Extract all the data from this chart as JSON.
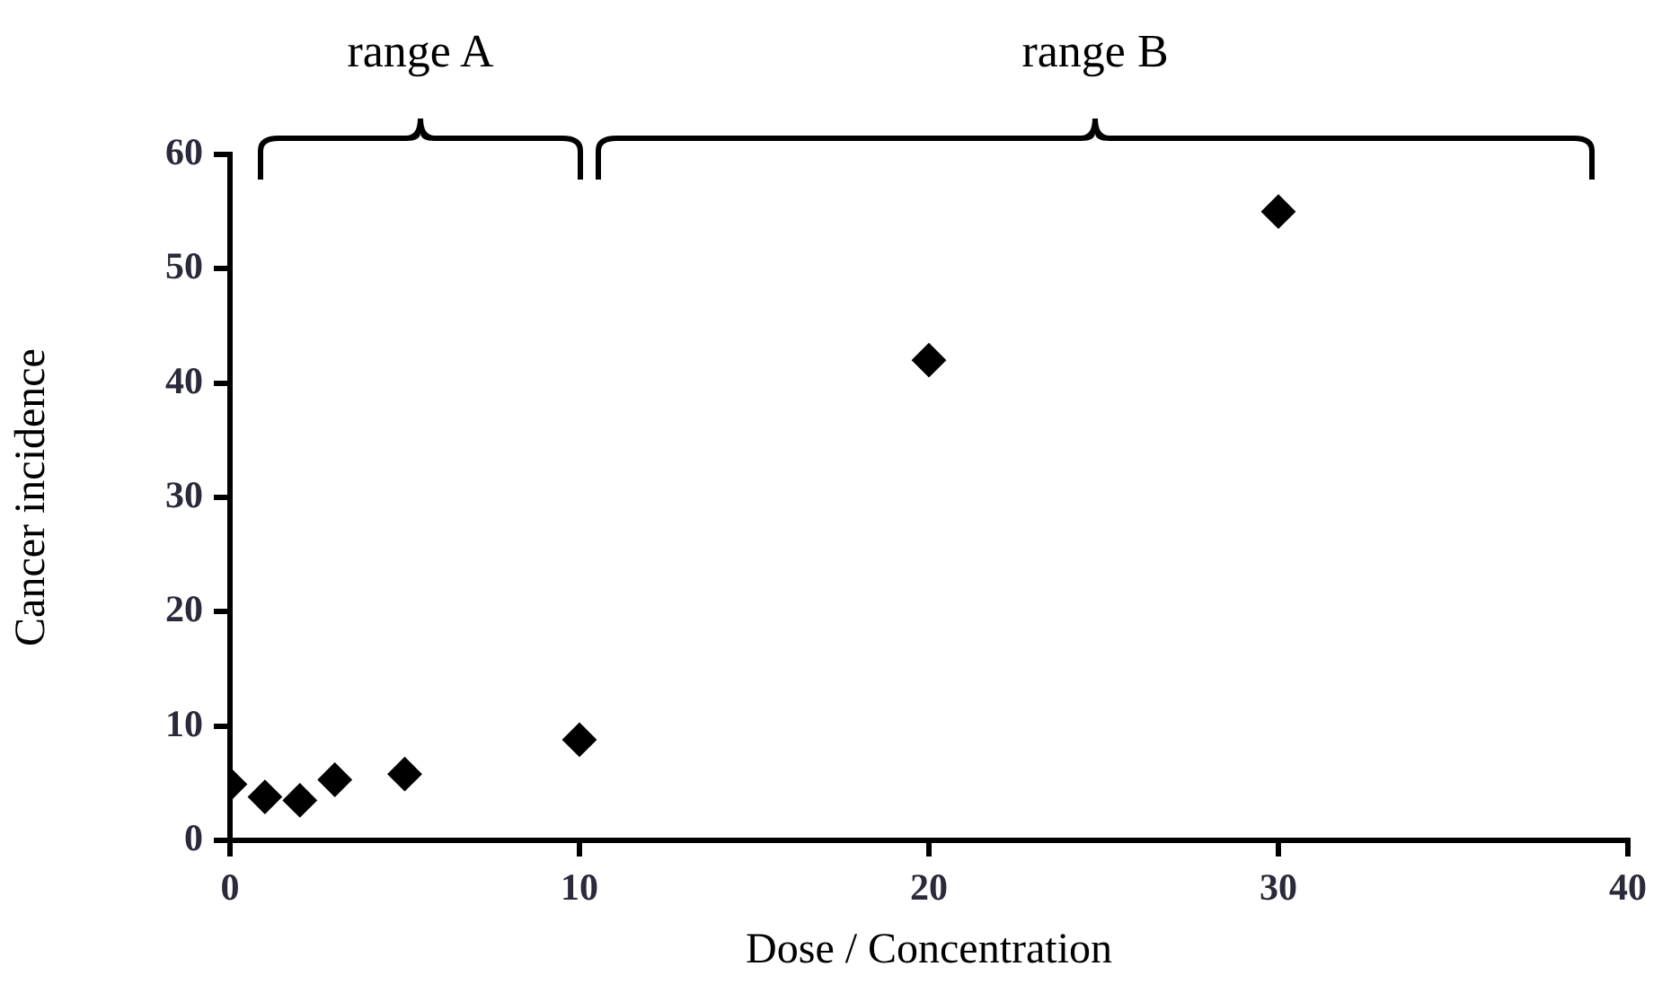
{
  "chart_data": {
    "type": "scatter",
    "xlabel": "Dose / Concentration",
    "ylabel": "Cancer incidence",
    "x": [
      0,
      1,
      2,
      3,
      5,
      10,
      20,
      30
    ],
    "series": [
      {
        "color": "#000000",
        "values": [
          4.9,
          3.8,
          3.5,
          5.3,
          5.8,
          8.8,
          42,
          55
        ]
      }
    ],
    "xlim": [
      0,
      40
    ],
    "xticks": [
      0,
      10,
      20,
      30,
      40
    ],
    "ylim": [
      0,
      60
    ],
    "yticks": [
      0,
      10,
      20,
      30,
      40,
      50,
      60
    ],
    "grid": false,
    "legend": false,
    "marker": "diamond",
    "annotations": [
      "range A",
      "range B"
    ]
  }
}
